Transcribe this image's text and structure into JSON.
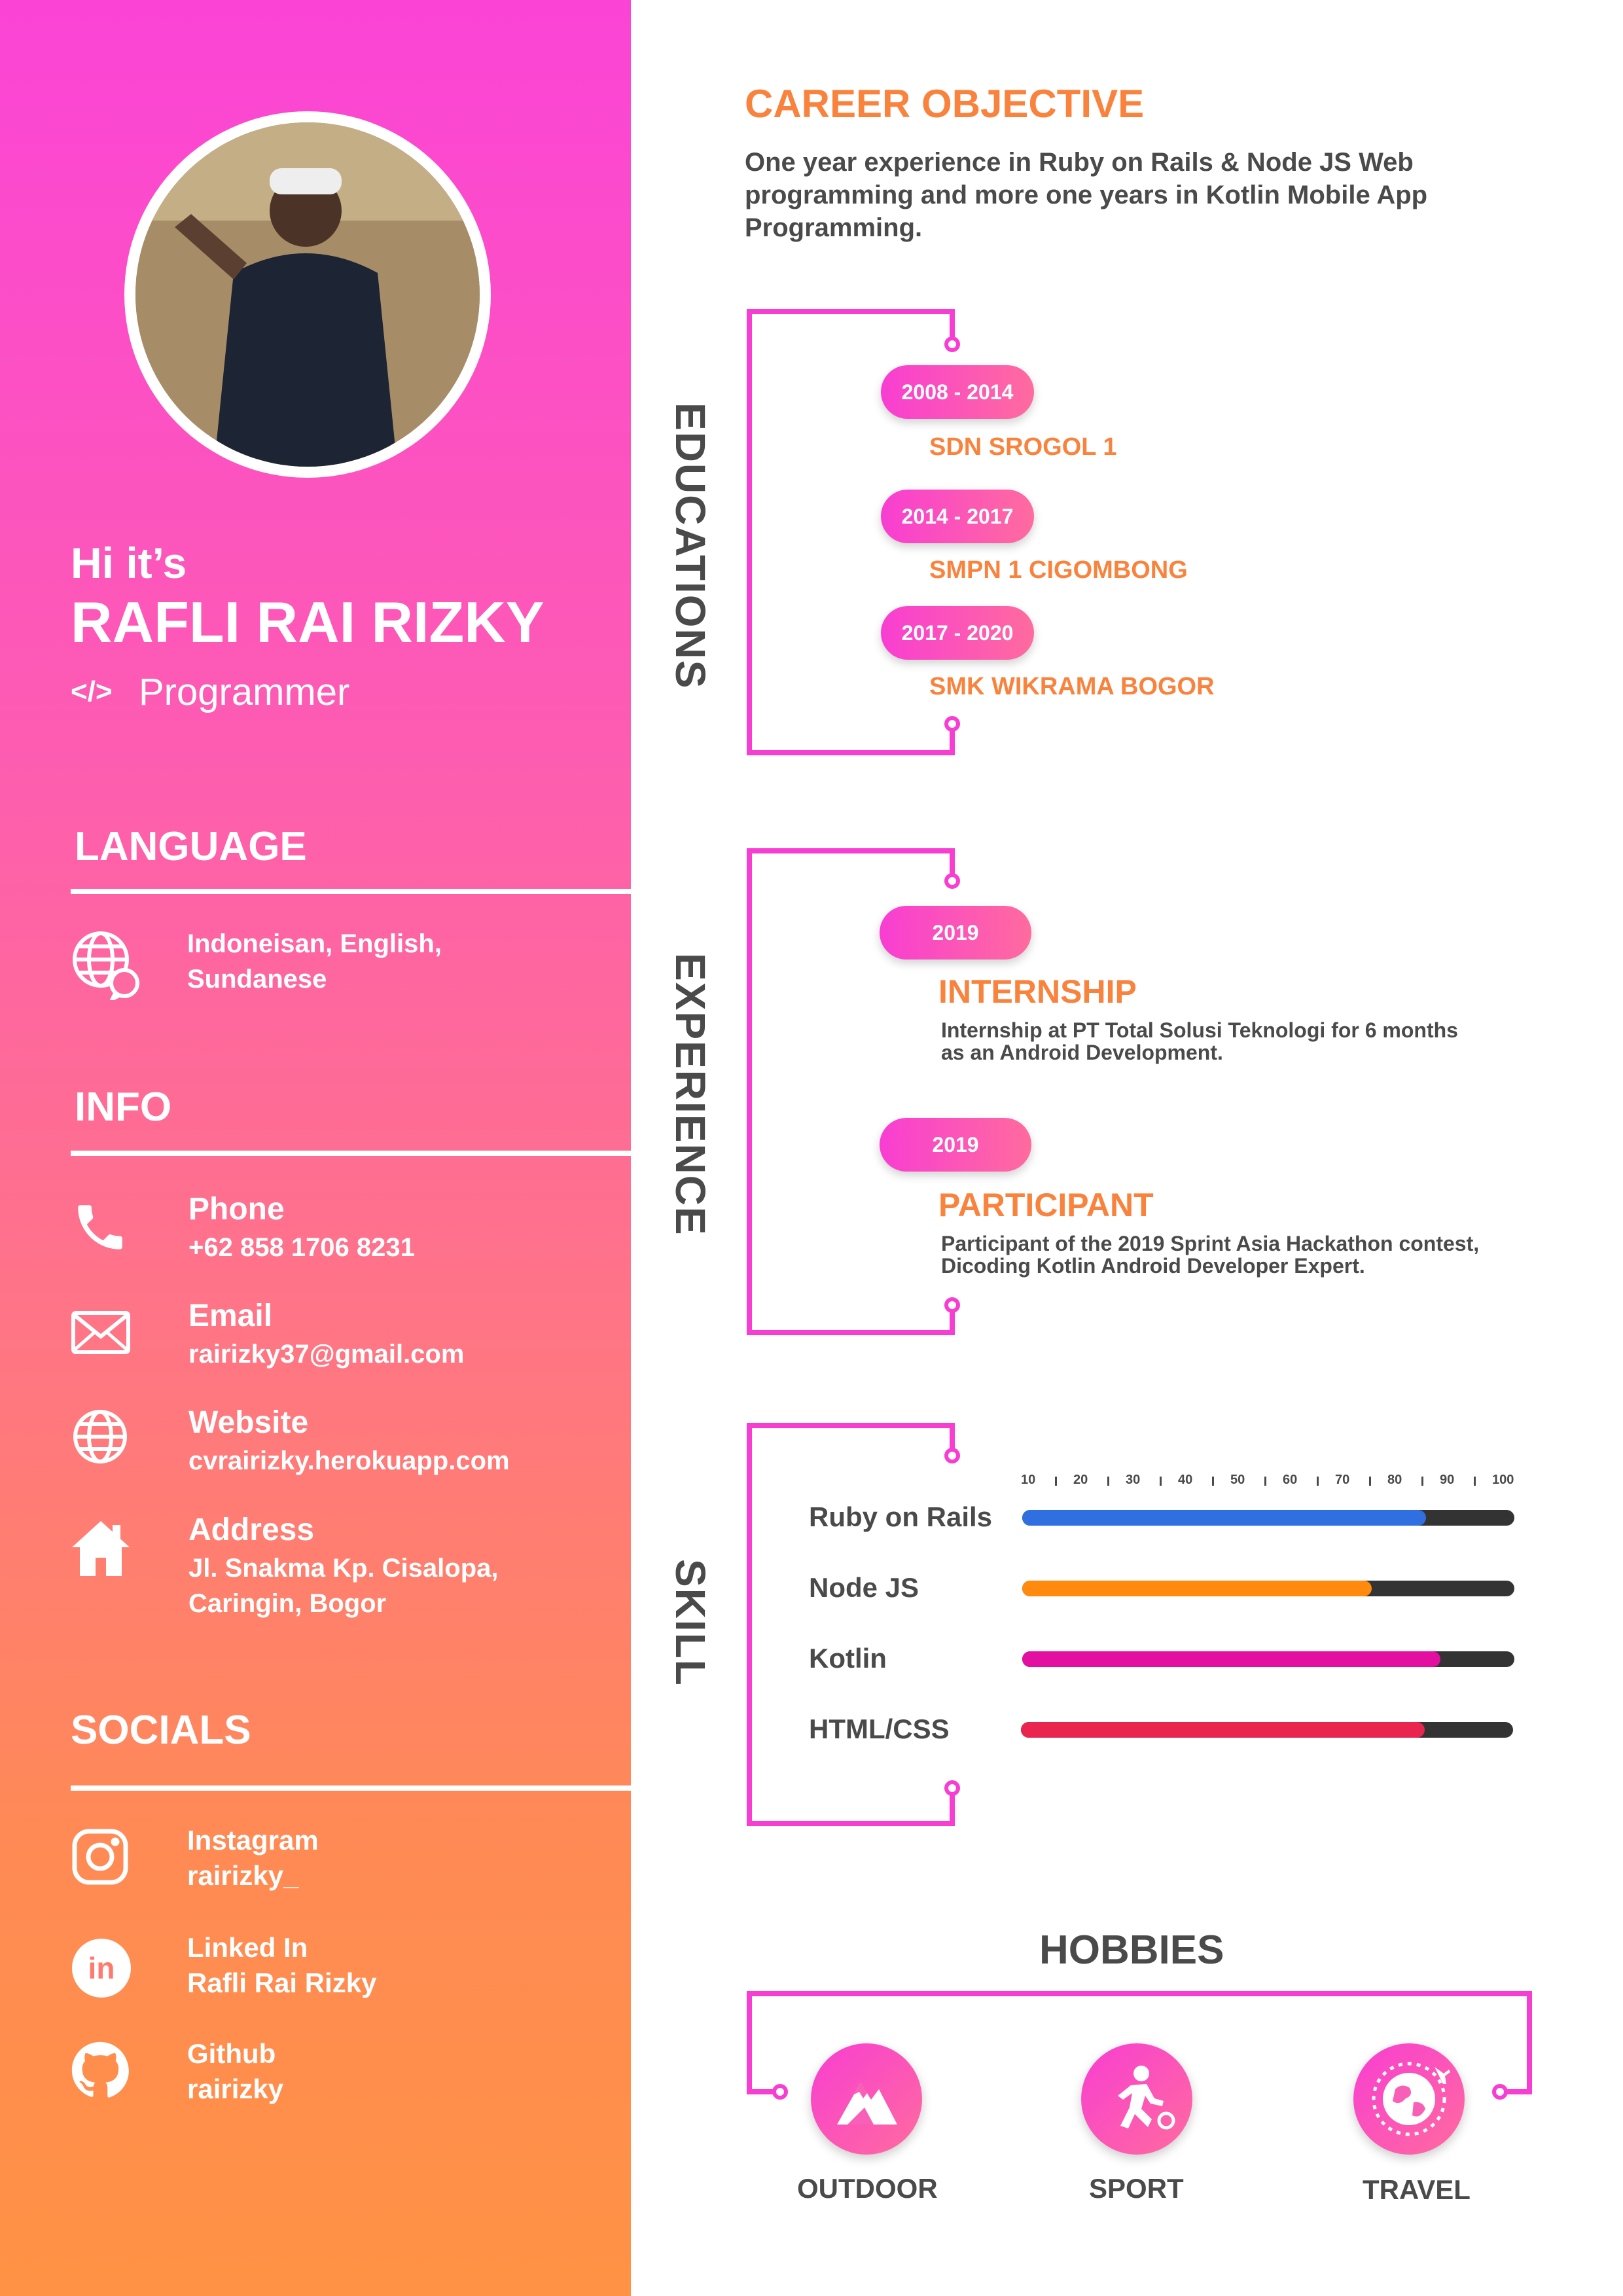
{
  "profile": {
    "greeting": "Hi it’s",
    "name": "RAFLI RAI RIZKY",
    "code_symbol": "</>",
    "role": "Programmer"
  },
  "language": {
    "heading": "LANGUAGE",
    "icon": "globe-chat-icon",
    "text_line1": "Indoneisan, English,",
    "text_line2": "Sundanese"
  },
  "info": {
    "heading": "INFO",
    "items": [
      {
        "icon": "phone-icon",
        "label": "Phone",
        "value": "+62 858 1706 8231"
      },
      {
        "icon": "mail-icon",
        "label": "Email",
        "value": "rairizky37@gmail.com"
      },
      {
        "icon": "globe-icon",
        "label": "Website",
        "value": "cvrairizky.herokuapp.com"
      },
      {
        "icon": "home-icon",
        "label": "Address",
        "value": "Jl. Snakma Kp. Cisalopa,",
        "value2": "Caringin, Bogor"
      }
    ]
  },
  "socials": {
    "heading": "SOCIALS",
    "items": [
      {
        "icon": "instagram-icon",
        "label": "Instagram",
        "value": "rairizky_"
      },
      {
        "icon": "linkedin-icon",
        "label": "Linked In",
        "value": "Rafli Rai Rizky"
      },
      {
        "icon": "github-icon",
        "label": "Github",
        "value": "rairizky"
      }
    ]
  },
  "career": {
    "heading": "CAREER OBJECTIVE",
    "line1": "One year experience in Ruby on Rails & Node JS Web",
    "line2": "programming and more one years in Kotlin Mobile App",
    "line3": "Programming."
  },
  "educations": {
    "heading": "EDUCATIONS",
    "items": [
      {
        "years": "2008 - 2014",
        "school": "SDN SROGOL 1"
      },
      {
        "years": "2014 - 2017",
        "school": "SMPN 1 CIGOMBONG"
      },
      {
        "years": "2017 - 2020",
        "school": "SMK WIKRAMA BOGOR"
      }
    ]
  },
  "experience": {
    "heading": "EXPERIENCE",
    "items": [
      {
        "year": "2019",
        "title": "INTERNSHIP",
        "line1": "Internship at PT Total Solusi Teknologi for 6 months",
        "line2": "as an Android Development."
      },
      {
        "year": "2019",
        "title": "PARTICIPANT",
        "line1": "Participant of the 2019 Sprint Asia Hackathon contest,",
        "line2": "Dicoding Kotlin Android Developer Expert."
      }
    ]
  },
  "skill": {
    "heading": "SKILL",
    "ticks": [
      "10",
      "20",
      "30",
      "40",
      "50",
      "60",
      "70",
      "80",
      "90",
      "100"
    ],
    "items": [
      {
        "name": "Ruby on Rails",
        "level": 82,
        "color": "#2f6fe0"
      },
      {
        "name": "Node JS",
        "level": 71,
        "color": "#ff8a0d"
      },
      {
        "name": "Kotlin",
        "level": 85,
        "color": "#e30fa0"
      },
      {
        "name": "HTML/CSS",
        "level": 82,
        "color": "#e8244f"
      }
    ]
  },
  "hobbies": {
    "heading": "HOBBIES",
    "items": [
      {
        "label": "OUTDOOR",
        "icon": "mountain-icon"
      },
      {
        "label": "SPORT",
        "icon": "running-person-icon"
      },
      {
        "label": "TRAVEL",
        "icon": "globe-plane-icon"
      }
    ]
  },
  "colors": {
    "accent_pink": "#f83ed2",
    "accent_orange": "#f9833d",
    "text_gray": "#4a4a4a"
  }
}
